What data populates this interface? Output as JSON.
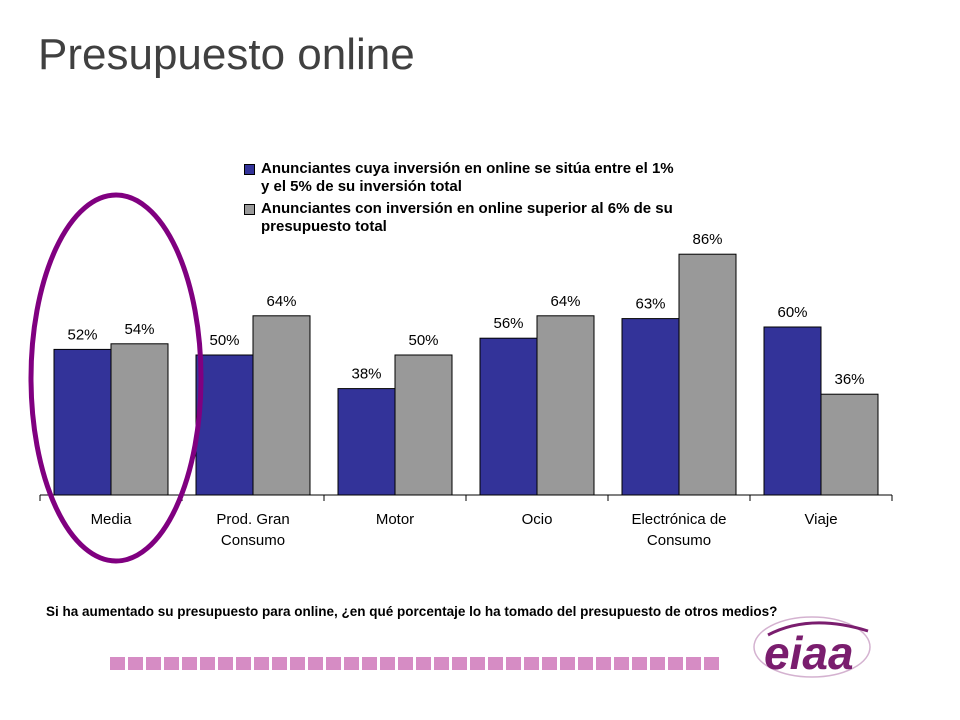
{
  "page": {
    "title": "Presupuesto online"
  },
  "chart_data": {
    "type": "bar",
    "categories": [
      "Media",
      "Prod. Gran\nConsumo",
      "Motor",
      "Ocio",
      "Electrónica de\nConsumo",
      "Viaje"
    ],
    "series": [
      {
        "name": "Anunciantes cuya inversión en online se sitúa entre el 1% y el 5% de su inversión total",
        "values": [
          52,
          50,
          38,
          56,
          63,
          60
        ],
        "labels": [
          "52%",
          "50%",
          "38%",
          "56%",
          "63%",
          "60%"
        ],
        "color": "#333399"
      },
      {
        "name": "Anunciantes con inversión en online superior al 6% de su presupuesto total",
        "values": [
          54,
          64,
          50,
          64,
          86,
          36
        ],
        "labels": [
          "54%",
          "64%",
          "50%",
          "64%",
          "86%",
          "36%"
        ],
        "color": "#999999"
      }
    ],
    "ylim": [
      0,
      100
    ],
    "grid": false,
    "legend": "top",
    "highlight": {
      "category": "Media",
      "color": "#800080"
    }
  },
  "question": "Si ha aumentado su presupuesto para online, ¿en qué porcentaje lo ha tomado del presupuesto de otros medios?",
  "logo": {
    "text": "eiaa",
    "color": "#7a1d6e"
  },
  "colors": {
    "strip": "#d68cc4"
  }
}
